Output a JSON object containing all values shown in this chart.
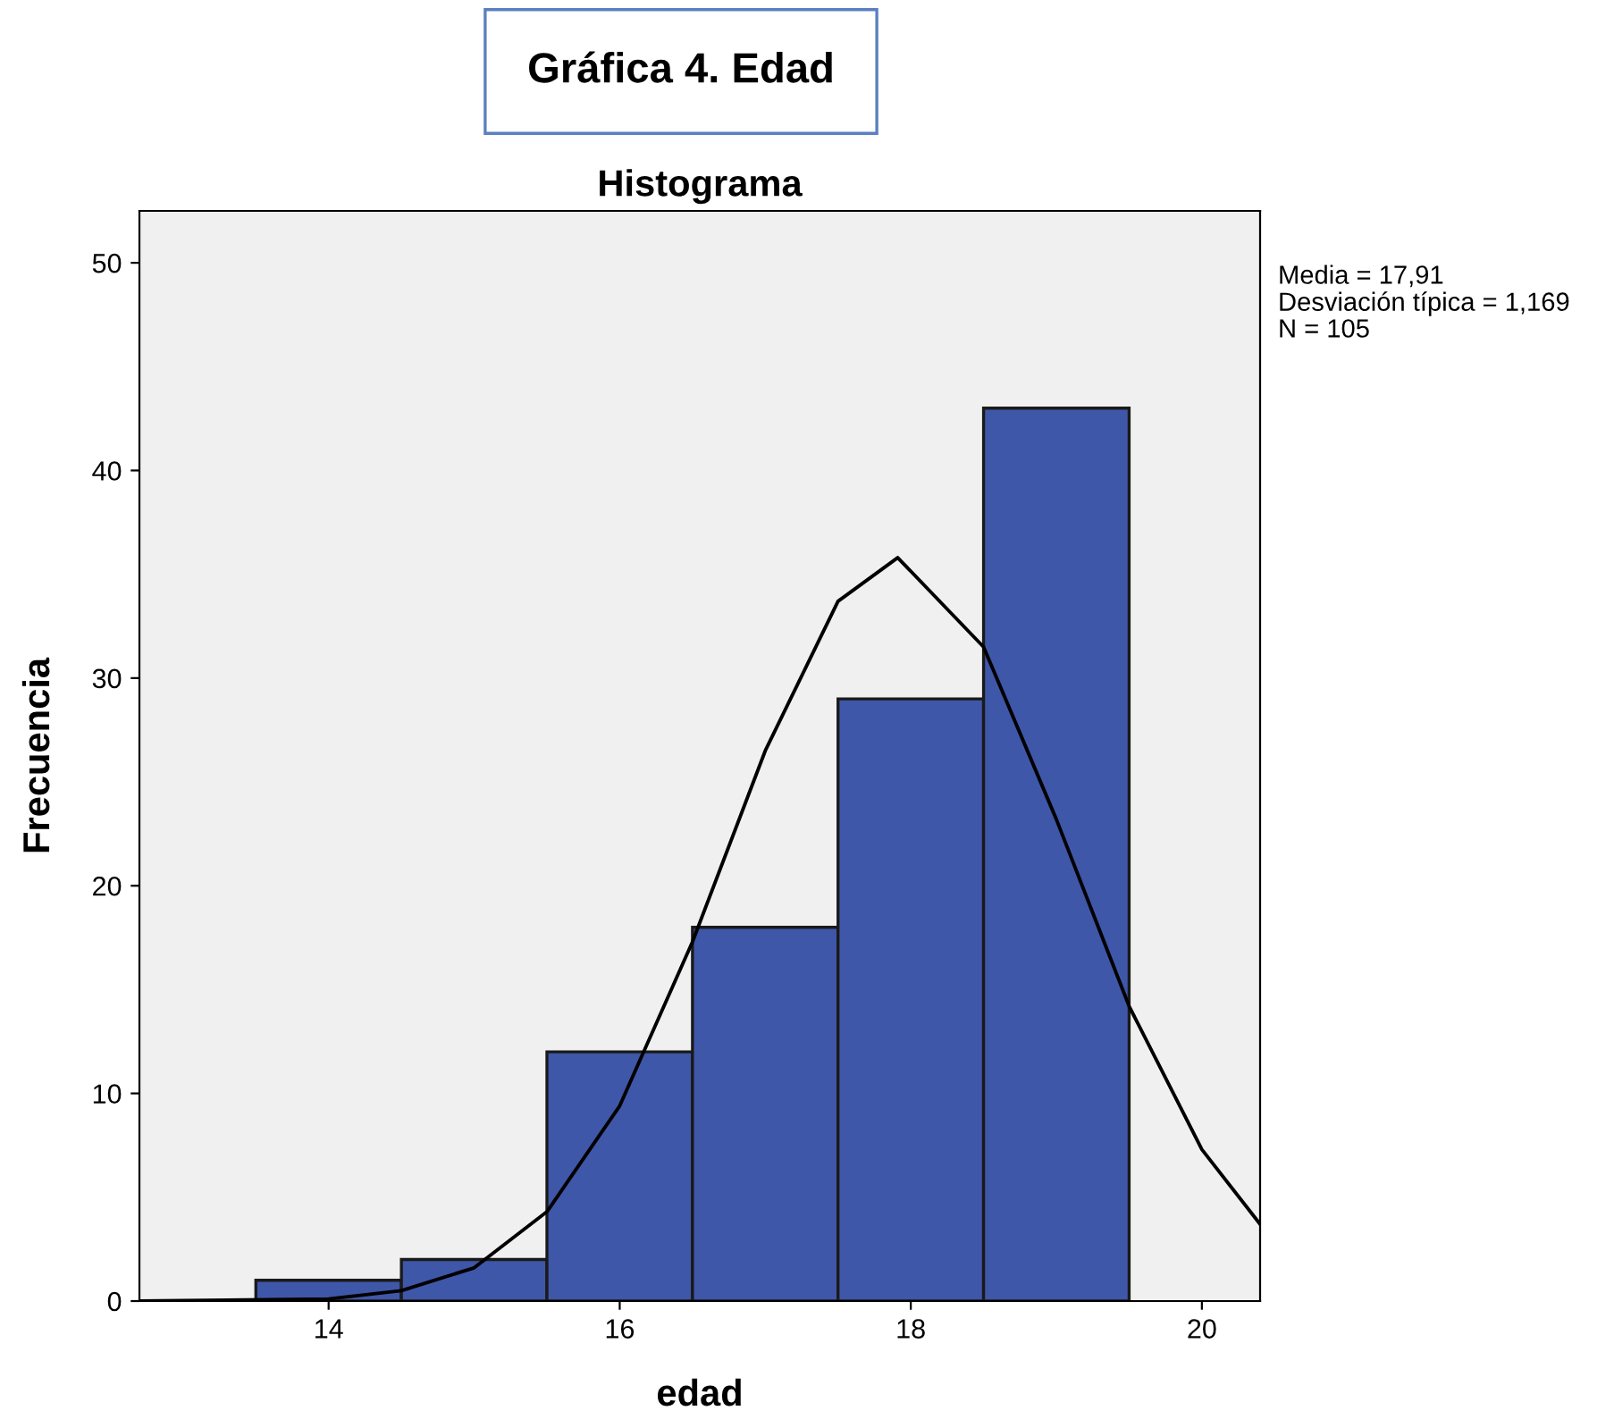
{
  "chart_data": {
    "type": "histogram",
    "title": "Gráfica 4. Edad",
    "subtitle": "Histograma",
    "xlabel": "edad",
    "ylabel": "Frecuencia",
    "bins": [
      13.5,
      14.5,
      15.5,
      16.5,
      17.5,
      18.5,
      19.5
    ],
    "values": [
      1,
      2,
      12,
      18,
      29,
      43
    ],
    "color": "#3f57a8",
    "series": [
      {
        "type": "line",
        "color": "#000000",
        "x": [
          12.7,
          14,
          14.5,
          15,
          15.5,
          16,
          16.5,
          17,
          17.5,
          17.91,
          18.5,
          19,
          19.5,
          20,
          20.4
        ],
        "values": [
          0,
          0.1,
          0.5,
          1.6,
          4.3,
          9.4,
          17.3,
          26.5,
          33.7,
          35.8,
          31.5,
          23.2,
          14.2,
          7.3,
          3.7
        ]
      }
    ],
    "annotations": [
      "Media = 17,91",
      "Desviación típica = 1,169",
      "N = 105"
    ],
    "xlim": [
      12.7,
      20.4
    ],
    "ylim": [
      0,
      52.5
    ],
    "xticks": [
      14,
      16,
      18,
      20
    ],
    "yticks": [
      0,
      10,
      20,
      30,
      40,
      50
    ],
    "grid": false,
    "legend": false
  }
}
